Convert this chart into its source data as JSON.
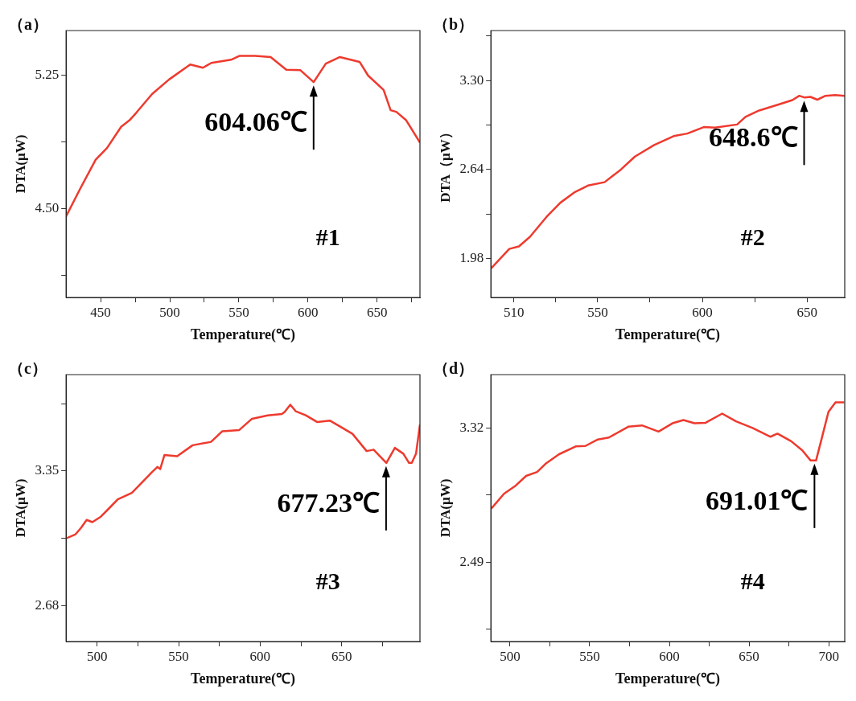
{
  "chart_data": [
    {
      "type": "line",
      "title": "（a）",
      "xlabel": "Temperature(℃)",
      "ylabel": "DTA(μW)",
      "color": "#ee3a2e",
      "grid": false,
      "xlim": [
        425,
        681
      ],
      "ylim": [
        4.0,
        5.5
      ],
      "xticks": [
        450,
        {
          "value": 475,
          "label": null
        },
        500,
        {
          "value": 525,
          "label": null
        },
        550,
        {
          "value": 575,
          "label": null
        },
        600,
        {
          "value": 625,
          "label": null
        },
        650,
        {
          "value": 675,
          "label": null
        }
      ],
      "yticks": [
        {
          "value": 4.125,
          "label": null
        },
        {
          "value": 4.5,
          "label": "4.50"
        },
        {
          "value": 4.875,
          "label": null
        },
        {
          "value": 5.25,
          "label": "5.25"
        }
      ],
      "x": [
        425,
        435.2,
        446.4,
        454.6,
        464.8,
        470.9,
        476,
        487.2,
        499.5,
        514.8,
        524,
        530.1,
        544.4,
        550.6,
        561.8,
        573,
        584.3,
        594.5,
        604.1,
        612.9,
        623.1,
        637.3,
        643.5,
        654.7,
        659.8,
        663.9,
        671,
        681
      ],
      "values": [
        4.456,
        4.611,
        4.774,
        4.84,
        4.959,
        4.996,
        5.04,
        5.143,
        5.225,
        5.309,
        5.291,
        5.318,
        5.336,
        5.358,
        5.358,
        5.351,
        5.28,
        5.277,
        5.21,
        5.314,
        5.351,
        5.324,
        5.247,
        5.166,
        5.052,
        5.043,
        4.996,
        4.87
      ],
      "annotations": [
        {
          "text": "604.06℃",
          "x": 604.06,
          "y": 5.21
        },
        "#1"
      ]
    },
    {
      "type": "line",
      "title": "（b）",
      "xlabel": "Temperature(℃)",
      "ylabel": "DTA（μW）",
      "color": "#ee3a2e",
      "grid": false,
      "xlim": [
        499,
        668
      ],
      "ylim": [
        1.69,
        3.67
      ],
      "xticks": [
        510,
        {
          "value": 530,
          "label": null
        },
        550,
        {
          "value": 575,
          "label": null
        },
        600,
        {
          "value": 625,
          "label": null
        },
        650
      ],
      "yticks": [
        {
          "value": 1.98,
          "label": "1.98"
        },
        {
          "value": 2.31,
          "label": null
        },
        {
          "value": 2.64,
          "label": "2.64"
        },
        {
          "value": 2.97,
          "label": null
        },
        {
          "value": 3.3,
          "label": "3.30"
        },
        {
          "value": 3.63,
          "label": null
        }
      ],
      "x": [
        499,
        507.8,
        512.4,
        517.7,
        525.6,
        532.2,
        538.8,
        545.4,
        553.3,
        561.2,
        567.8,
        577,
        586.3,
        592.8,
        600.7,
        606,
        616.6,
        620.6,
        627.1,
        636.4,
        643,
        646.3,
        648.9,
        651.6,
        654.9,
        658.8,
        663.4,
        668
      ],
      "values": [
        1.904,
        2.05,
        2.069,
        2.14,
        2.288,
        2.393,
        2.469,
        2.52,
        2.545,
        2.64,
        2.735,
        2.821,
        2.887,
        2.906,
        2.954,
        2.95,
        2.973,
        3.03,
        3.077,
        3.121,
        3.154,
        3.186,
        3.173,
        3.178,
        3.157,
        3.186,
        3.192,
        3.186
      ],
      "annotations": [
        {
          "text": "648.6℃",
          "x": 648.6,
          "y": 3.173
        },
        "#2"
      ]
    },
    {
      "type": "line",
      "title": "（c）",
      "xlabel": "Temperature(℃)",
      "ylabel": "DTA(μW)",
      "color": "#ee3a2e",
      "grid": false,
      "xlim": [
        481,
        698
      ],
      "ylim": [
        2.5,
        3.83
      ],
      "xticks": [
        500,
        {
          "value": 525,
          "label": null
        },
        550,
        {
          "value": 575,
          "label": null
        },
        600,
        {
          "value": 625,
          "label": null
        },
        650,
        {
          "value": 675,
          "label": null
        }
      ],
      "yticks": [
        {
          "value": 2.68,
          "label": "2.68"
        },
        {
          "value": 3.015,
          "label": null
        },
        {
          "value": 3.35,
          "label": "3.35"
        },
        {
          "value": 3.685,
          "label": null
        }
      ],
      "x": [
        481,
        486.6,
        490.1,
        493.6,
        497.1,
        502.3,
        507.5,
        512.7,
        521.3,
        526.5,
        533.5,
        537,
        538.7,
        541.3,
        549.1,
        558.6,
        569.9,
        576.8,
        587.2,
        595,
        604.6,
        613.3,
        615,
        618.5,
        621.9,
        628,
        634.9,
        642.7,
        649.7,
        656.6,
        665.3,
        669.6,
        677.4,
        682.6,
        687.8,
        691.3,
        693,
        695.6,
        698
      ],
      "values": [
        3.014,
        3.033,
        3.066,
        3.106,
        3.095,
        3.122,
        3.165,
        3.209,
        3.241,
        3.284,
        3.343,
        3.37,
        3.359,
        3.429,
        3.423,
        3.478,
        3.495,
        3.548,
        3.554,
        3.61,
        3.627,
        3.634,
        3.644,
        3.68,
        3.647,
        3.627,
        3.594,
        3.601,
        3.568,
        3.535,
        3.449,
        3.456,
        3.39,
        3.465,
        3.436,
        3.39,
        3.39,
        3.436,
        3.581
      ],
      "annotations": [
        {
          "text": "677.23℃",
          "x": 677.23,
          "y": 3.39
        },
        "#3"
      ]
    },
    {
      "type": "line",
      "title": "（d）",
      "xlabel": "Temperature(℃)",
      "ylabel": "DTA(μW)",
      "color": "#ee3a2e",
      "grid": false,
      "xlim": [
        488,
        710
      ],
      "ylim": [
        2.0,
        3.65
      ],
      "xticks": [
        500,
        {
          "value": 525,
          "label": null
        },
        550,
        {
          "value": 575,
          "label": null
        },
        600,
        {
          "value": 625,
          "label": null
        },
        650,
        {
          "value": 675,
          "label": null
        },
        700
      ],
      "yticks": [
        {
          "value": 2.075,
          "label": null
        },
        {
          "value": 2.49,
          "label": "2.49"
        },
        {
          "value": 2.905,
          "label": null
        },
        {
          "value": 3.32,
          "label": "3.32"
        }
      ],
      "x": [
        488.4,
        496.2,
        503.1,
        510.1,
        517,
        522.2,
        530.8,
        541.2,
        547.3,
        555.1,
        562,
        574.2,
        582.8,
        593.2,
        601.9,
        608.8,
        615.8,
        622.7,
        633.1,
        641.8,
        652.2,
        663.4,
        667.8,
        676.4,
        683.4,
        688.6,
        692,
        695.5,
        699.8,
        704.2,
        709.7
      ],
      "values": [
        2.823,
        2.913,
        2.96,
        3.024,
        3.048,
        3.098,
        3.158,
        3.206,
        3.209,
        3.249,
        3.261,
        3.328,
        3.336,
        3.298,
        3.349,
        3.369,
        3.349,
        3.352,
        3.409,
        3.361,
        3.32,
        3.266,
        3.285,
        3.238,
        3.182,
        3.119,
        3.119,
        3.253,
        3.42,
        3.478,
        3.478
      ],
      "annotations": [
        {
          "text": "691.01℃",
          "x": 691.01,
          "y": 3.119
        },
        "#4"
      ]
    }
  ]
}
